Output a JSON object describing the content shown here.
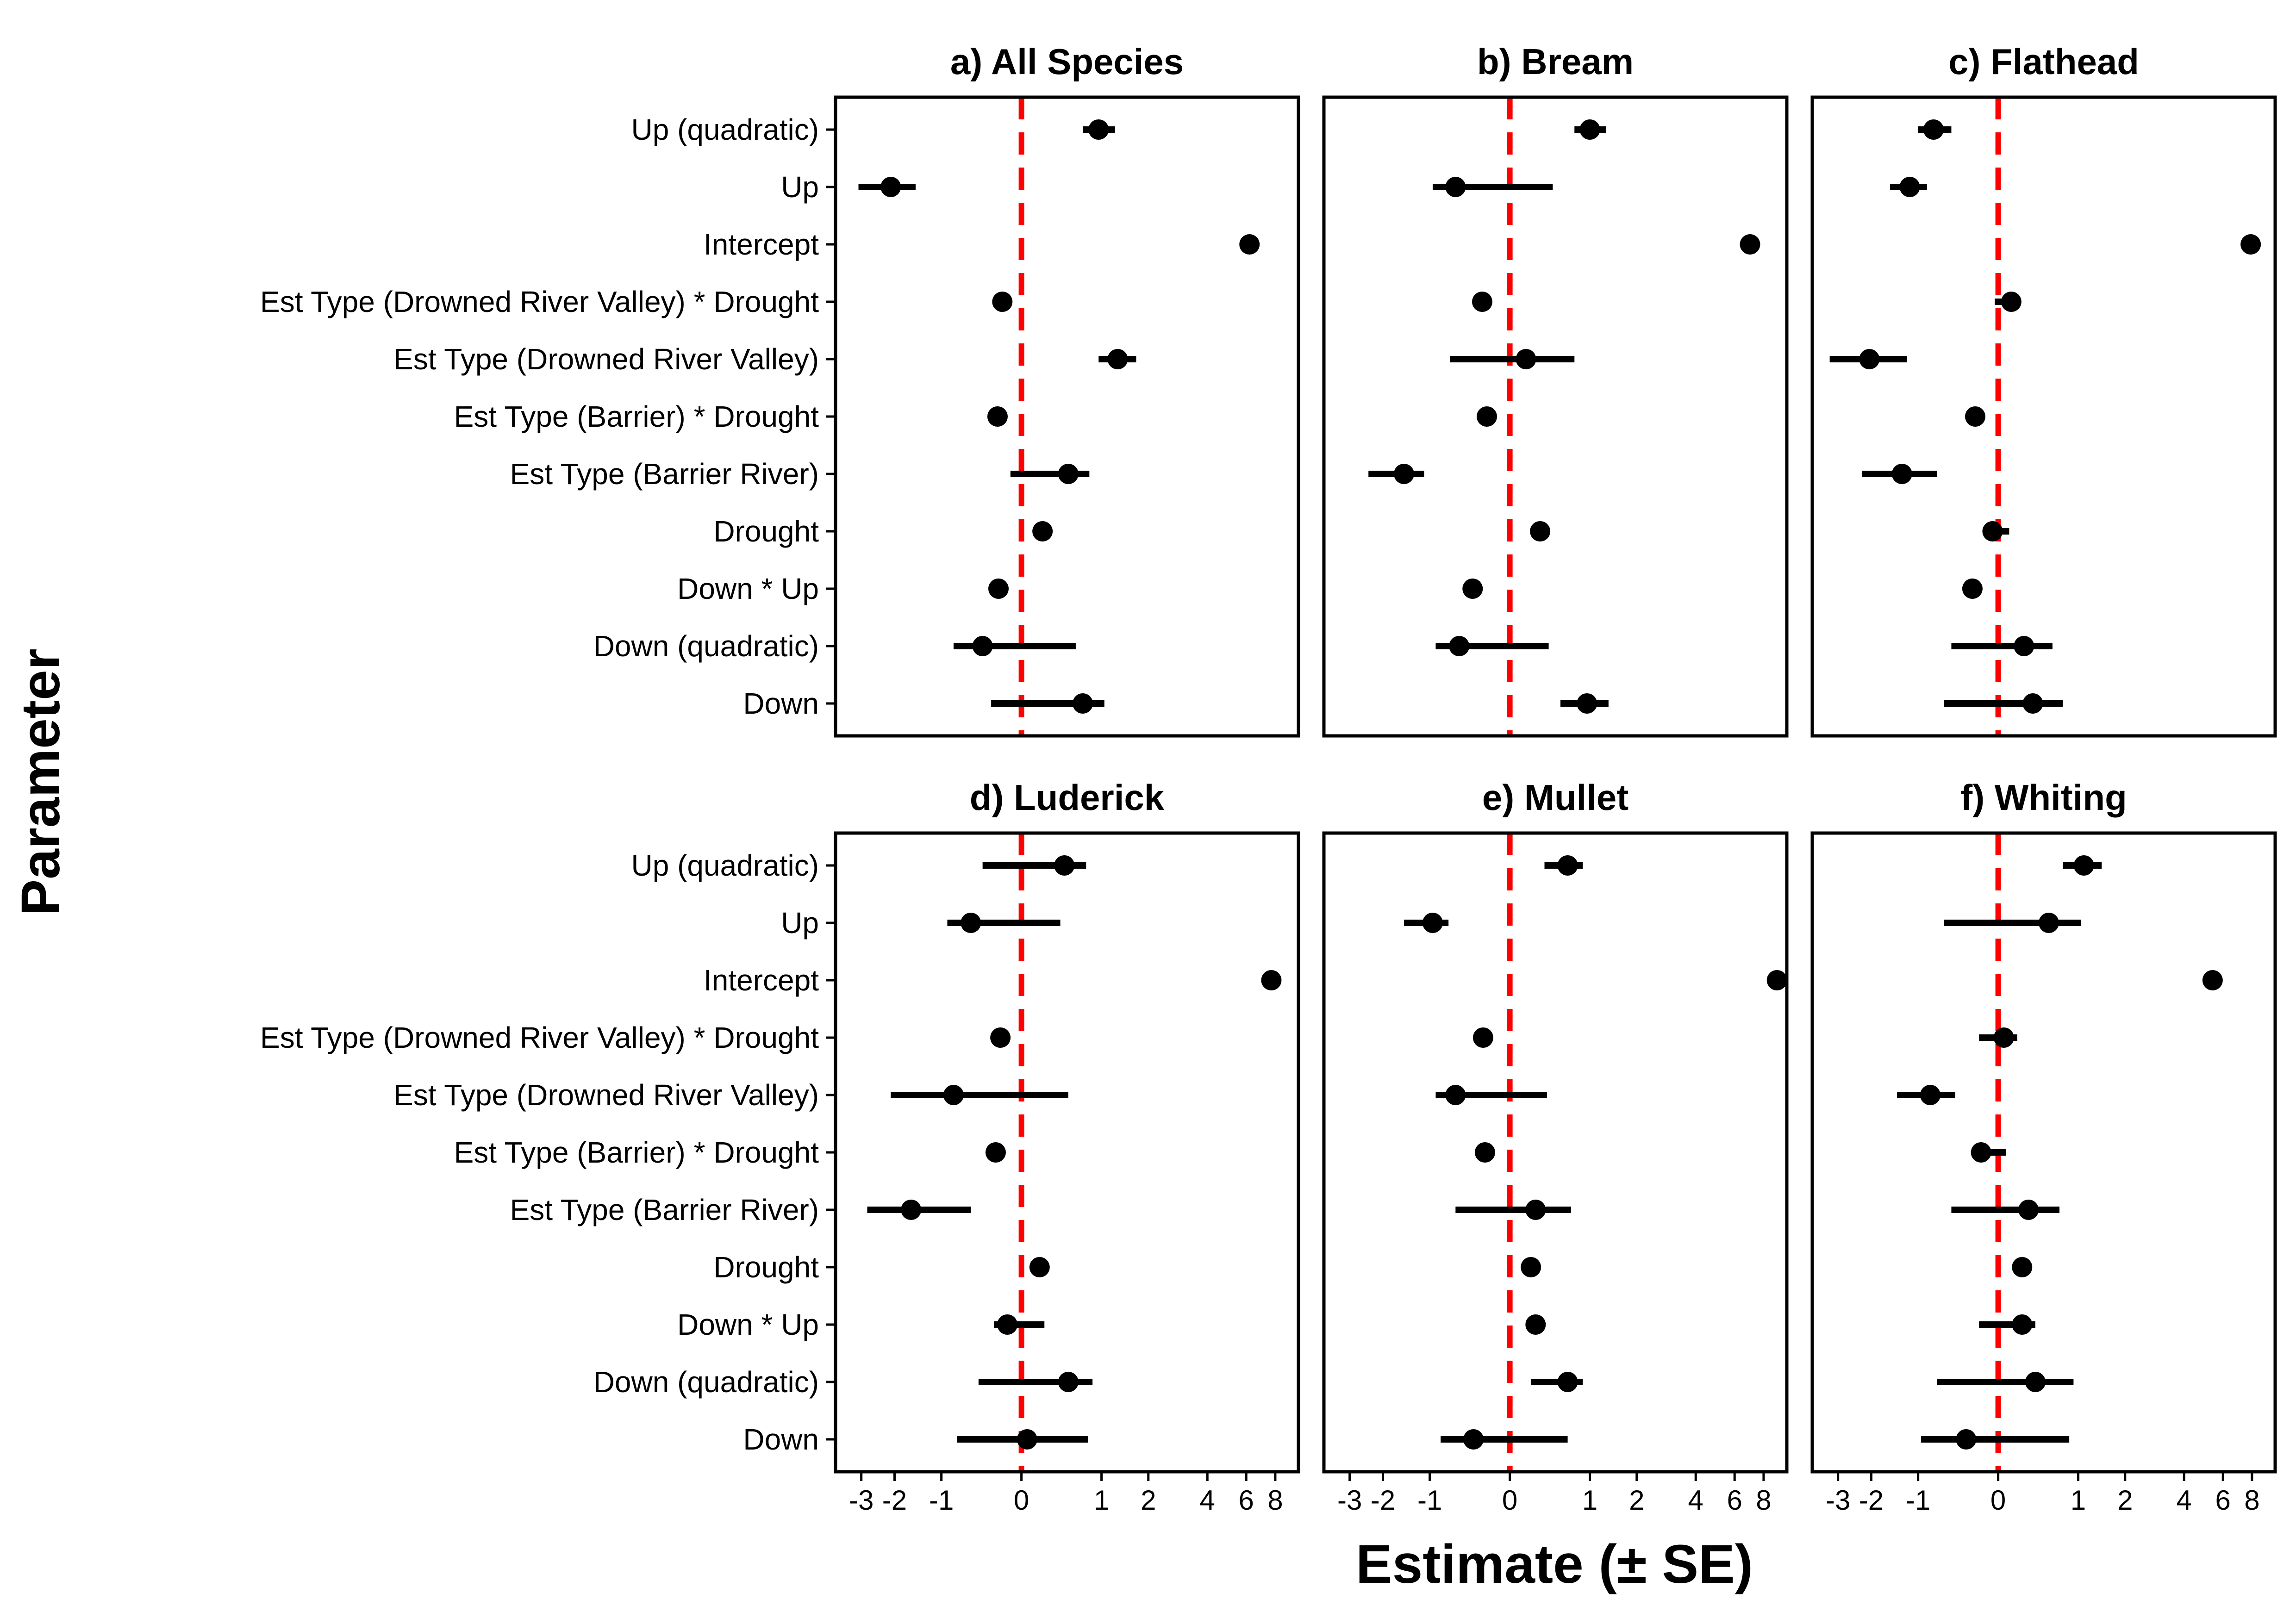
{
  "chart_data": {
    "type": "scatter",
    "xlabel": "Estimate (± SE)",
    "ylabel": "Parameter",
    "x_scale": "signed-log",
    "x_ticks": [
      -3,
      -2,
      -1,
      0,
      1,
      2,
      4,
      6,
      8
    ],
    "x_tick_labels": [
      "-3",
      "-2",
      "-1",
      "0",
      "1",
      "2",
      "4",
      "6",
      "8"
    ],
    "xlim": [
      -4,
      10
    ],
    "reference_line": {
      "x": 0,
      "color": "#ff0000",
      "style": "dashed"
    },
    "parameters": [
      "Up (quadratic)",
      "Up",
      "Intercept",
      "Est Type (Drowned River Valley) * Drought",
      "Est Type (Drowned River Valley)",
      "Est Type (Barrier) * Drought",
      "Est Type (Barrier River)",
      "Drought",
      "Down * Up ",
      "Down (quadratic)",
      "Down"
    ],
    "panels": [
      {
        "title": "a) All Species",
        "estimates": [
          0.95,
          -2.1,
          6.2,
          -0.18,
          1.3,
          -0.23,
          0.5,
          0.2,
          -0.22,
          -0.4,
          0.7
        ],
        "lower": [
          0.7,
          -3.1,
          6.2,
          -0.18,
          0.95,
          -0.23,
          -0.1,
          0.2,
          -0.22,
          -0.8,
          -0.3
        ],
        "upper": [
          1.25,
          -1.5,
          6.2,
          -0.18,
          1.7,
          -0.23,
          0.8,
          0.2,
          -0.22,
          0.6,
          1.05
        ]
      },
      {
        "title": "b) Bream",
        "estimates": [
          1.0,
          -0.6,
          7.0,
          -0.27,
          0.15,
          -0.22,
          -1.5,
          0.3,
          -0.38,
          -0.55,
          0.95
        ],
        "lower": [
          0.75,
          -0.95,
          7.0,
          -0.27,
          -0.68,
          -0.22,
          -2.4,
          0.3,
          -0.38,
          -0.9,
          0.55
        ],
        "upper": [
          1.3,
          0.45,
          7.0,
          -0.27,
          0.75,
          -0.22,
          -1.1,
          0.3,
          -0.38,
          0.4,
          1.35
        ]
      },
      {
        "title": "c) Flathead",
        "estimates": [
          -0.75,
          -1.15,
          7.9,
          0.12,
          -2.05,
          -0.22,
          -1.3,
          -0.05,
          -0.25,
          0.25,
          0.35
        ],
        "lower": [
          -1.0,
          -1.55,
          7.9,
          -0.03,
          -3.3,
          -0.22,
          -2.25,
          -0.05,
          -0.25,
          -0.5,
          -0.6
        ],
        "upper": [
          -0.5,
          -0.85,
          7.9,
          0.12,
          -1.2,
          -0.22,
          -0.7,
          0.1,
          -0.25,
          0.6,
          0.75
        ]
      },
      {
        "title": "d) Luderick",
        "estimates": [
          0.45,
          -0.55,
          7.7,
          -0.2,
          -0.8,
          -0.25,
          -1.6,
          0.17,
          -0.13,
          0.5,
          0.05
        ],
        "lower": [
          -0.4,
          -0.9,
          7.7,
          -0.2,
          -2.1,
          -0.25,
          -2.8,
          0.17,
          -0.27,
          -0.45,
          -0.75
        ],
        "upper": [
          0.75,
          0.4,
          7.7,
          -0.2,
          0.5,
          -0.25,
          -0.55,
          0.17,
          0.22,
          0.85,
          0.78
        ]
      },
      {
        "title": "e) Mullet",
        "estimates": [
          0.65,
          -0.95,
          9.1,
          -0.26,
          -0.6,
          -0.24,
          0.25,
          0.2,
          0.25,
          0.65,
          -0.37
        ],
        "lower": [
          0.35,
          -1.5,
          9.1,
          -0.26,
          -0.9,
          -0.24,
          -0.6,
          0.2,
          0.25,
          0.2,
          -0.82
        ],
        "upper": [
          0.88,
          -0.7,
          9.1,
          -0.26,
          0.38,
          -0.24,
          0.7,
          0.2,
          0.25,
          0.88,
          0.65
        ]
      },
      {
        "title": "f) Whiting",
        "estimates": [
          1.1,
          0.55,
          5.4,
          0.05,
          -0.8,
          -0.16,
          0.3,
          0.23,
          0.23,
          0.38,
          -0.32
        ],
        "lower": [
          0.75,
          -0.6,
          5.4,
          -0.18,
          -1.4,
          -0.16,
          -0.5,
          0.23,
          -0.18,
          -0.7,
          -0.95
        ],
        "upper": [
          1.45,
          1.05,
          5.4,
          0.18,
          -0.45,
          0.07,
          0.7,
          0.23,
          0.38,
          0.92,
          0.85
        ]
      }
    ]
  }
}
